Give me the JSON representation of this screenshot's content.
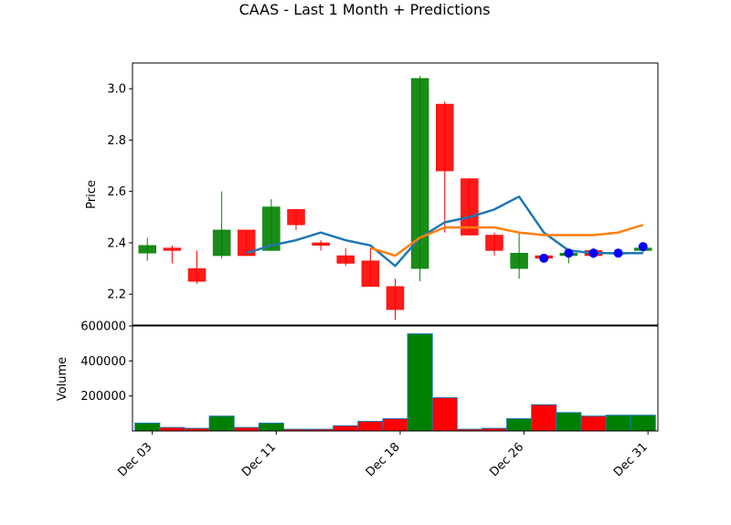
{
  "title": "CAAS - Last 1 Month + Predictions",
  "chart_data": {
    "type": "candlestick",
    "title": "CAAS - Last 1 Month + Predictions",
    "price_panel": {
      "ylabel": "Price",
      "ylim": [
        2.08,
        3.1
      ],
      "yticks": [
        2.2,
        2.4,
        2.6,
        2.8,
        3.0
      ],
      "ytick_labels": [
        "2.2",
        "2.4",
        "2.6",
        "2.8",
        "3.0"
      ]
    },
    "volume_panel": {
      "ylabel": "Volume",
      "ylim": [
        0,
        600000
      ],
      "yticks": [
        200000,
        400000,
        600000
      ],
      "ytick_labels": [
        "200000",
        "400000",
        "600000"
      ]
    },
    "xlim": [
      -0.6,
      20.6
    ],
    "xticks": [
      {
        "pos": 0.2,
        "label": "Dec 03"
      },
      {
        "pos": 5.2,
        "label": "Dec 11"
      },
      {
        "pos": 10.2,
        "label": "Dec 18"
      },
      {
        "pos": 15.2,
        "label": "Dec 26"
      },
      {
        "pos": 20.2,
        "label": "Dec 31"
      }
    ],
    "candles": [
      {
        "open": 2.36,
        "high": 2.42,
        "low": 2.33,
        "close": 2.39,
        "volume": 45000
      },
      {
        "open": 2.38,
        "high": 2.39,
        "low": 2.32,
        "close": 2.37,
        "volume": 20000
      },
      {
        "open": 2.3,
        "high": 2.37,
        "low": 2.24,
        "close": 2.25,
        "volume": 15000
      },
      {
        "open": 2.35,
        "high": 2.6,
        "low": 2.34,
        "close": 2.45,
        "volume": 85000
      },
      {
        "open": 2.45,
        "high": 2.45,
        "low": 2.35,
        "close": 2.35,
        "volume": 20000
      },
      {
        "open": 2.37,
        "high": 2.57,
        "low": 2.37,
        "close": 2.54,
        "volume": 45000
      },
      {
        "open": 2.53,
        "high": 2.53,
        "low": 2.45,
        "close": 2.47,
        "volume": 10000
      },
      {
        "open": 2.4,
        "high": 2.41,
        "low": 2.37,
        "close": 2.39,
        "volume": 10000
      },
      {
        "open": 2.35,
        "high": 2.38,
        "low": 2.31,
        "close": 2.32,
        "volume": 30000
      },
      {
        "open": 2.33,
        "high": 2.38,
        "low": 2.23,
        "close": 2.23,
        "volume": 55000
      },
      {
        "open": 2.23,
        "high": 2.26,
        "low": 2.1,
        "close": 2.14,
        "volume": 70000
      },
      {
        "open": 2.3,
        "high": 3.05,
        "low": 2.25,
        "close": 3.04,
        "volume": 555000
      },
      {
        "open": 2.94,
        "high": 2.95,
        "low": 2.44,
        "close": 2.68,
        "volume": 190000
      },
      {
        "open": 2.65,
        "high": 2.65,
        "low": 2.43,
        "close": 2.43,
        "volume": 10000
      },
      {
        "open": 2.43,
        "high": 2.44,
        "low": 2.35,
        "close": 2.37,
        "volume": 15000
      },
      {
        "open": 2.3,
        "high": 2.44,
        "low": 2.26,
        "close": 2.36,
        "volume": 70000
      },
      {
        "open": 2.35,
        "high": 2.35,
        "low": 2.33,
        "close": 2.34,
        "volume": 150000
      },
      {
        "open": 2.35,
        "high": 2.37,
        "low": 2.32,
        "close": 2.36,
        "volume": 105000
      },
      {
        "open": 2.37,
        "high": 2.38,
        "low": 2.34,
        "close": 2.35,
        "volume": 85000
      },
      {
        "open": 2.36,
        "high": 2.37,
        "low": 2.35,
        "close": 2.36,
        "volume": 90000
      },
      {
        "open": 2.37,
        "high": 2.39,
        "low": 2.36,
        "close": 2.38,
        "volume": 90000
      }
    ],
    "series": [
      {
        "color": "#1f77b4",
        "x": [
          4,
          5,
          6,
          7,
          8,
          9,
          10,
          11,
          12,
          13,
          14,
          15,
          16,
          17,
          18,
          19,
          20
        ],
        "values": [
          2.36,
          2.39,
          2.41,
          2.44,
          2.41,
          2.39,
          2.31,
          2.42,
          2.48,
          2.5,
          2.53,
          2.58,
          2.44,
          2.37,
          2.36,
          2.36,
          2.36
        ]
      },
      {
        "color": "#ff7f0e",
        "x": [
          9,
          10,
          11,
          12,
          13,
          14,
          15,
          16,
          17,
          18,
          19,
          20
        ],
        "values": [
          2.38,
          2.35,
          2.42,
          2.46,
          2.46,
          2.46,
          2.44,
          2.43,
          2.43,
          2.43,
          2.44,
          2.47
        ]
      }
    ],
    "prediction_points": {
      "color": "#0000ff",
      "x": [
        16,
        17,
        18,
        19,
        20
      ],
      "values": [
        2.34,
        2.36,
        2.36,
        2.36,
        2.385
      ]
    },
    "colors": {
      "up": "#008000",
      "down": "#ff0000",
      "volume_edge": "#1f77b4"
    }
  }
}
